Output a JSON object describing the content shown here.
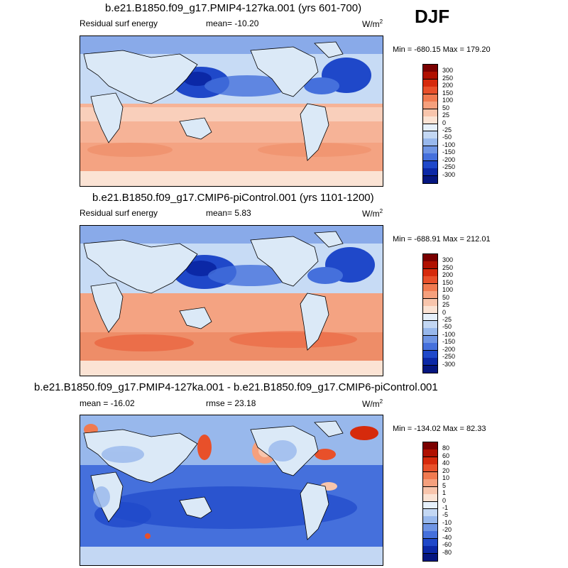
{
  "season": "DJF",
  "panels": [
    {
      "title": "b.e21.B1850.f09_g17.PMIP4-127ka.001 (yrs 601-700)",
      "left_label": "Residual surf energy",
      "center_label": "mean= -10.20",
      "units": "W/m",
      "units_sup": "2",
      "minmax": "Min = -680.15 Max = 179.20",
      "colorbar": "abs"
    },
    {
      "title": "b.e21.B1850.f09_g17.CMIP6-piControl.001 (yrs 1101-1200)",
      "left_label": "Residual surf energy",
      "center_label": "mean=  5.83",
      "units": "W/m",
      "units_sup": "2",
      "minmax": "Min = -688.91 Max = 212.01",
      "colorbar": "abs"
    },
    {
      "title": "b.e21.B1850.f09_g17.PMIP4-127ka.001 - b.e21.B1850.f09_g17.CMIP6-piControl.001",
      "left_label": "mean = -16.02",
      "center_label": "rmse =  23.18",
      "units": "W/m",
      "units_sup": "2",
      "minmax": "Min = -134.02 Max =  82.33",
      "colorbar": "diff"
    }
  ],
  "colorbars": {
    "abs": {
      "labels": [
        "300",
        "250",
        "200",
        "150",
        "100",
        "50",
        "25",
        "0",
        "-25",
        "-50",
        "-100",
        "-150",
        "-200",
        "-250",
        "-300"
      ],
      "colors": [
        "#7a0000",
        "#b01000",
        "#d62a0c",
        "#e8502a",
        "#f07a50",
        "#f5a07d",
        "#f8c5ac",
        "#fbe3d4",
        "#e6f0fb",
        "#c3d7f3",
        "#98b8ec",
        "#6f95e4",
        "#4570dc",
        "#1f48c9",
        "#0b28a6",
        "#051680"
      ]
    },
    "diff": {
      "labels": [
        "80",
        "60",
        "40",
        "20",
        "10",
        "5",
        "1",
        "0",
        "-1",
        "-5",
        "-10",
        "-20",
        "-40",
        "-60",
        "-80"
      ],
      "colors": [
        "#7a0000",
        "#b01000",
        "#d62a0c",
        "#e8502a",
        "#f07a50",
        "#f5a07d",
        "#f8c5ac",
        "#fbe3d4",
        "#e6f0fb",
        "#c3d7f3",
        "#98b8ec",
        "#6f95e4",
        "#4570dc",
        "#1f48c9",
        "#0b28a6",
        "#051680"
      ]
    }
  },
  "palette": {
    "land": "#dbe9f7",
    "coastline": "#000000"
  }
}
